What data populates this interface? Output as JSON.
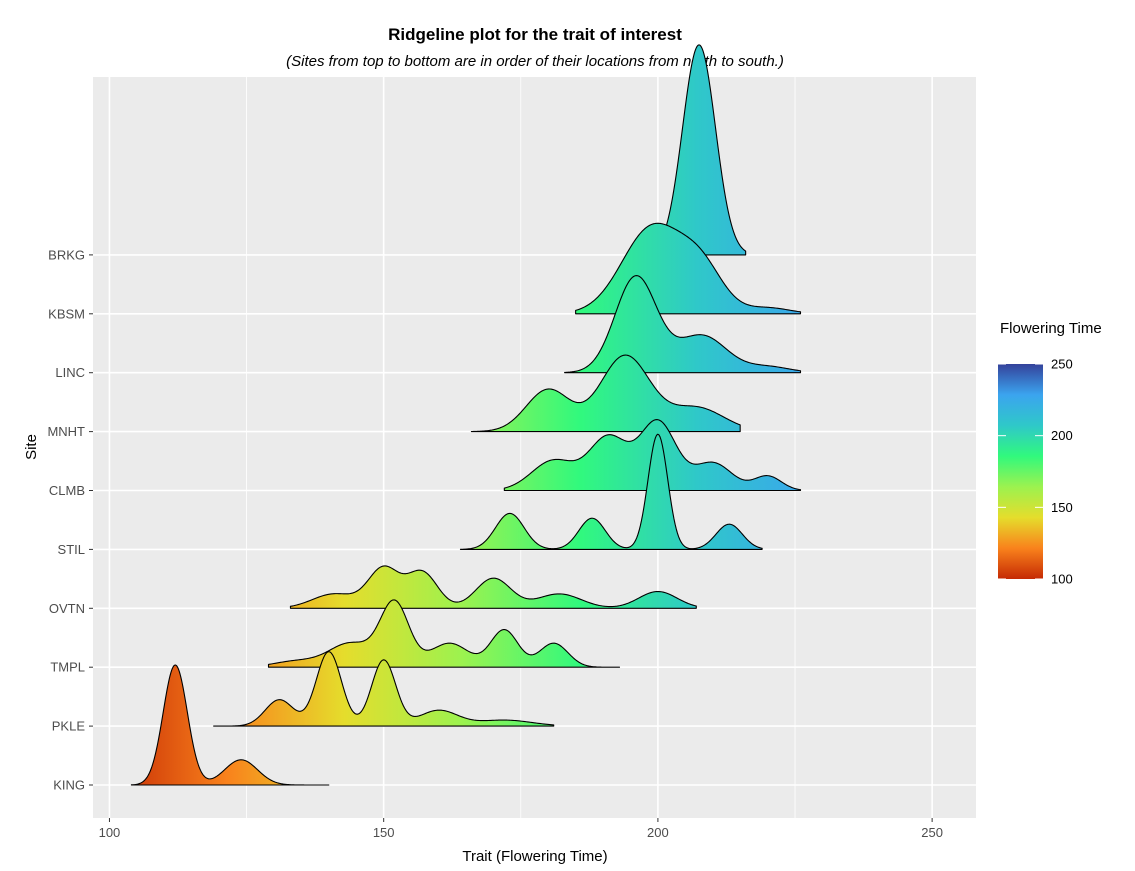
{
  "chart_data": {
    "type": "ridgeline",
    "title": "Ridgeline plot for the trait of interest",
    "subtitle": "(Sites from top to bottom are in order of their locations from north to south.)",
    "xlabel": "Trait (Flowering Time)",
    "ylabel": "Site",
    "xlim": [
      97,
      258
    ],
    "x_ticks": [
      100,
      150,
      200,
      250
    ],
    "grid": true,
    "legend": {
      "title": "Flowering Time",
      "position": "right",
      "range": [
        100,
        250
      ],
      "ticks": [
        100,
        150,
        200,
        250
      ],
      "colors": [
        "#c52a04",
        "#f9821c",
        "#e5dd2c",
        "#9cf24f",
        "#31f97d",
        "#2fc8c9",
        "#3ba4ef",
        "#34429b"
      ]
    },
    "series": [
      {
        "name": "KING",
        "min": 104,
        "max": 140,
        "peaks": [
          [
            112,
            2.2,
            1.0
          ],
          [
            124,
            3.0,
            0.21
          ]
        ]
      },
      {
        "name": "PKLE",
        "min": 119,
        "max": 181,
        "peaks": [
          [
            131,
            2.6,
            0.22
          ],
          [
            140,
            2.3,
            0.62
          ],
          [
            150,
            2.2,
            0.55
          ],
          [
            160,
            3.5,
            0.13
          ],
          [
            172,
            5.0,
            0.05
          ],
          [
            194,
            1.0,
            0.0
          ]
        ]
      },
      {
        "name": "TMPL",
        "min": 129,
        "max": 193,
        "peaks": [
          [
            134,
            4.0,
            0.05
          ],
          [
            144,
            4.0,
            0.2
          ],
          [
            152,
            2.6,
            0.53
          ],
          [
            162,
            3.5,
            0.2
          ],
          [
            172,
            2.5,
            0.31
          ],
          [
            181,
            2.6,
            0.2
          ]
        ]
      },
      {
        "name": "OVTN",
        "min": 133,
        "max": 207,
        "peaks": [
          [
            141,
            4.0,
            0.12
          ],
          [
            150,
            2.8,
            0.33
          ],
          [
            157,
            2.8,
            0.3
          ],
          [
            170,
            3.2,
            0.25
          ],
          [
            182,
            4.0,
            0.12
          ],
          [
            200,
            3.5,
            0.14
          ]
        ]
      },
      {
        "name": "STIL",
        "min": 164,
        "max": 219,
        "peaks": [
          [
            173,
            2.6,
            0.3
          ],
          [
            188,
            2.4,
            0.26
          ],
          [
            200,
            1.8,
            0.96
          ],
          [
            213,
            2.4,
            0.21
          ]
        ]
      },
      {
        "name": "CLMB",
        "min": 172,
        "max": 226,
        "peaks": [
          [
            181,
            4.0,
            0.25
          ],
          [
            191,
            3.5,
            0.44
          ],
          [
            200,
            3.3,
            0.57
          ],
          [
            210,
            3.5,
            0.23
          ],
          [
            220,
            2.5,
            0.12
          ]
        ]
      },
      {
        "name": "MNHT",
        "min": 166,
        "max": 215,
        "peaks": [
          [
            180,
            4.0,
            0.35
          ],
          [
            194,
            4.5,
            0.63
          ],
          [
            207,
            5.0,
            0.2
          ]
        ]
      },
      {
        "name": "LINC",
        "min": 183,
        "max": 226,
        "peaks": [
          [
            196,
            3.8,
            0.8
          ],
          [
            208,
            4.5,
            0.31
          ],
          [
            220,
            4.0,
            0.05
          ]
        ]
      },
      {
        "name": "KBSM",
        "min": 185,
        "max": 226,
        "peaks": [
          [
            199,
            5.5,
            0.72
          ],
          [
            208,
            4.0,
            0.34
          ],
          [
            220,
            4.0,
            0.05
          ]
        ]
      },
      {
        "name": "BRKG",
        "min": 199,
        "max": 216,
        "peaks": [
          [
            207.5,
            3.0,
            1.75
          ]
        ]
      }
    ]
  }
}
